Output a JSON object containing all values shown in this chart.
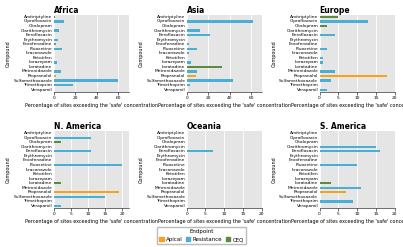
{
  "compounds": [
    "Amitriptyline",
    "Ciprofloxacin",
    "Citalopram",
    "Clarithromycin",
    "Enrofloxacin",
    "Erythromycin",
    "Fexofenadine",
    "Fluoxetine",
    "Itraconazole",
    "Ketotifen",
    "Lorazepam",
    "Loratadine",
    "Metronidazole",
    "Propranolol",
    "Sulfamethoxazole",
    "Trimethoprim",
    "Verapamil"
  ],
  "regions": [
    "Africa",
    "Asia",
    "Europe",
    "N. America",
    "Oceania",
    "S. America"
  ],
  "data": {
    "Africa": {
      "Amitriptyline": [
        0,
        0,
        1
      ],
      "Ciprofloxacin": [
        0,
        10,
        0
      ],
      "Citalopram": [
        0,
        0,
        0
      ],
      "Clarithromycin": [
        0,
        5,
        0
      ],
      "Enrofloxacin": [
        0,
        0,
        0
      ],
      "Erythromycin": [
        0,
        4,
        0
      ],
      "Fexofenadine": [
        0,
        2,
        1
      ],
      "Fluoxetine": [
        0,
        8,
        0
      ],
      "Itraconazole": [
        0,
        0,
        0
      ],
      "Ketotifen": [
        0,
        0,
        0
      ],
      "Lorazepam": [
        0,
        3,
        0
      ],
      "Loratadine": [
        0,
        0,
        0
      ],
      "Metronidazole": [
        0,
        7,
        0
      ],
      "Propranolol": [
        2,
        0,
        0
      ],
      "Sulfamethoxazole": [
        0,
        60,
        0
      ],
      "Trimethoprim": [
        0,
        18,
        0
      ],
      "Verapamil": [
        0,
        0,
        0
      ]
    },
    "Asia": {
      "Amitriptyline": [
        0,
        0,
        0
      ],
      "Ciprofloxacin": [
        0,
        62,
        0
      ],
      "Citalopram": [
        0,
        0,
        0
      ],
      "Clarithromycin": [
        0,
        12,
        0
      ],
      "Enrofloxacin": [
        0,
        22,
        0
      ],
      "Erythromycin": [
        0,
        0,
        0
      ],
      "Fexofenadine": [
        0,
        2,
        0
      ],
      "Fluoxetine": [
        0,
        10,
        0
      ],
      "Itraconazole": [
        0,
        2,
        0
      ],
      "Ketotifen": [
        0,
        0,
        0
      ],
      "Lorazepam": [
        0,
        4,
        0
      ],
      "Loratadine": [
        0,
        0,
        33
      ],
      "Metronidazole": [
        0,
        10,
        0
      ],
      "Propranolol": [
        9,
        0,
        0
      ],
      "Sulfamethoxazole": [
        0,
        43,
        0
      ],
      "Trimethoprim": [
        0,
        3,
        0
      ],
      "Verapamil": [
        0,
        0,
        0
      ]
    },
    "Europe": {
      "Amitriptyline": [
        0,
        0,
        5
      ],
      "Ciprofloxacin": [
        0,
        13,
        0
      ],
      "Citalopram": [
        0,
        0,
        2
      ],
      "Clarithromycin": [
        0,
        0,
        0
      ],
      "Enrofloxacin": [
        0,
        4,
        0
      ],
      "Erythromycin": [
        0,
        0,
        0
      ],
      "Fexofenadine": [
        0,
        0,
        0
      ],
      "Fluoxetine": [
        0,
        2,
        0
      ],
      "Itraconazole": [
        0,
        0,
        0
      ],
      "Ketotifen": [
        0,
        1,
        0
      ],
      "Lorazepam": [
        0,
        1,
        0
      ],
      "Loratadine": [
        0,
        0,
        0
      ],
      "Metronidazole": [
        0,
        4,
        0
      ],
      "Propranolol": [
        18,
        0,
        0
      ],
      "Sulfamethoxazole": [
        0,
        3,
        0
      ],
      "Trimethoprim": [
        0,
        0,
        0
      ],
      "Verapamil": [
        0,
        2,
        0
      ]
    },
    "N. America": {
      "Amitriptyline": [
        0,
        0,
        0
      ],
      "Ciprofloxacin": [
        0,
        11,
        0
      ],
      "Citalopram": [
        0,
        0,
        2
      ],
      "Clarithromycin": [
        0,
        0,
        0
      ],
      "Enrofloxacin": [
        0,
        11,
        0
      ],
      "Erythromycin": [
        0,
        0,
        0
      ],
      "Fexofenadine": [
        0,
        0,
        0
      ],
      "Fluoxetine": [
        0,
        20,
        0
      ],
      "Itraconazole": [
        0,
        0,
        0
      ],
      "Ketotifen": [
        0,
        0,
        0
      ],
      "Lorazepam": [
        0,
        0,
        0
      ],
      "Loratadine": [
        0,
        0,
        2
      ],
      "Metronidazole": [
        0,
        0,
        0
      ],
      "Propranolol": [
        19,
        0,
        0
      ],
      "Sulfamethoxazole": [
        0,
        15,
        0
      ],
      "Trimethoprim": [
        0,
        0,
        0
      ],
      "Verapamil": [
        0,
        2,
        0
      ]
    },
    "Oceania": {
      "Amitriptyline": [
        0,
        0,
        0
      ],
      "Ciprofloxacin": [
        0,
        0,
        0
      ],
      "Citalopram": [
        0,
        0,
        0
      ],
      "Clarithromycin": [
        0,
        0,
        0
      ],
      "Enrofloxacin": [
        0,
        7,
        0
      ],
      "Erythromycin": [
        0,
        0,
        0
      ],
      "Fexofenadine": [
        0,
        0,
        0
      ],
      "Fluoxetine": [
        0,
        0,
        0
      ],
      "Itraconazole": [
        0,
        0,
        0
      ],
      "Ketotifen": [
        0,
        0,
        0
      ],
      "Lorazepam": [
        0,
        0,
        0
      ],
      "Loratadine": [
        0,
        0,
        0
      ],
      "Metronidazole": [
        0,
        0,
        0
      ],
      "Propranolol": [
        0,
        0,
        0
      ],
      "Sulfamethoxazole": [
        0,
        0,
        0
      ],
      "Trimethoprim": [
        0,
        0,
        0
      ],
      "Verapamil": [
        0,
        0,
        0
      ]
    },
    "S. America": {
      "Amitriptyline": [
        0,
        0,
        0
      ],
      "Ciprofloxacin": [
        0,
        0,
        0
      ],
      "Citalopram": [
        0,
        0,
        0
      ],
      "Clarithromycin": [
        0,
        15,
        0
      ],
      "Enrofloxacin": [
        0,
        16,
        0
      ],
      "Erythromycin": [
        0,
        0,
        0
      ],
      "Fexofenadine": [
        0,
        0,
        0
      ],
      "Fluoxetine": [
        0,
        10,
        0
      ],
      "Itraconazole": [
        0,
        0,
        0
      ],
      "Ketotifen": [
        0,
        0,
        0
      ],
      "Lorazepam": [
        0,
        0,
        0
      ],
      "Loratadine": [
        0,
        0,
        3
      ],
      "Metronidazole": [
        0,
        11,
        0
      ],
      "Propranolol": [
        7,
        0,
        0
      ],
      "Sulfamethoxazole": [
        0,
        0,
        0
      ],
      "Trimethoprim": [
        0,
        9,
        0
      ],
      "Verapamil": [
        0,
        0,
        0
      ]
    }
  },
  "colors": {
    "Apical": "#f5a31a",
    "Resistance": "#4baed5",
    "CEQ": "#5b8c3e"
  },
  "xlims": {
    "Africa": 70,
    "Asia": 70,
    "Europe": 20,
    "N. America": 22,
    "Oceania": 20,
    "S. America": 20
  },
  "xticks": {
    "Africa": [
      0,
      20,
      40,
      60
    ],
    "Asia": [
      0,
      20,
      40,
      60
    ],
    "Europe": [
      0,
      5,
      10,
      15,
      20
    ],
    "N. America": [
      0,
      5,
      10,
      15,
      20
    ],
    "Oceania": [
      0,
      5,
      10,
      15,
      20
    ],
    "S. America": [
      0,
      5,
      10,
      15,
      20
    ]
  },
  "xlabel": "Percentage of sites exceeding the 'safe' concentration",
  "ylabel": "Compound",
  "bg_color": "#e5e5e5",
  "fig_bg": "#ffffff",
  "title_fontsize": 5.5,
  "compound_fontsize": 3.2,
  "tick_fontsize": 3.2,
  "xlabel_fontsize": 3.5,
  "ylabel_fontsize": 3.5,
  "legend_fontsize": 4.0,
  "legend_title_fontsize": 4.0,
  "bar_height": 0.5
}
